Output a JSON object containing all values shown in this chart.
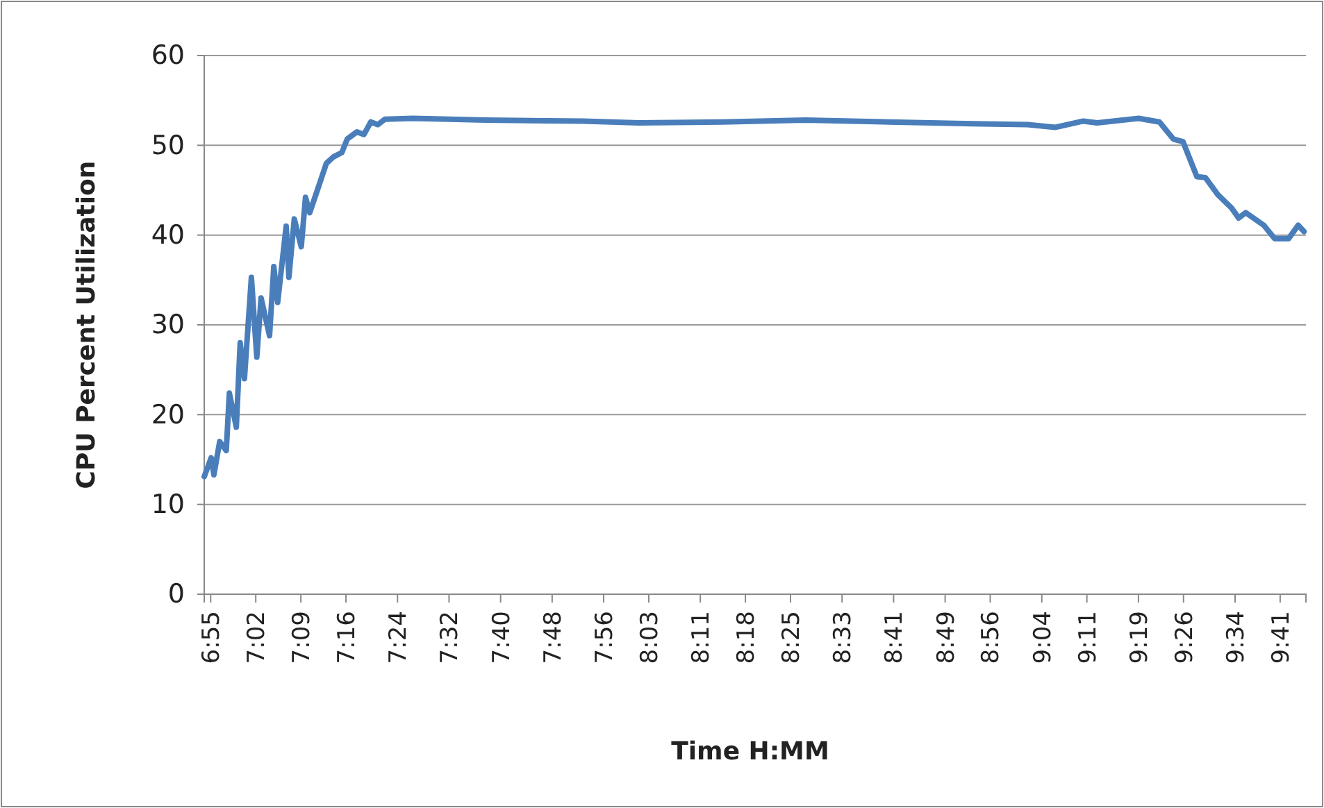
{
  "chart_data": {
    "type": "line",
    "xlabel": "Time H:MM",
    "ylabel": "CPU Percent Utilization",
    "xlim": [
      6.9,
      9.75
    ],
    "ylim": [
      0,
      60
    ],
    "yticks": [
      0,
      10,
      20,
      30,
      40,
      50,
      60
    ],
    "xticks": [
      {
        "value": 6.9167,
        "label": "6:55"
      },
      {
        "value": 7.0333,
        "label": "7:02"
      },
      {
        "value": 7.15,
        "label": "7:09"
      },
      {
        "value": 7.2667,
        "label": "7:16"
      },
      {
        "value": 7.4,
        "label": "7:24"
      },
      {
        "value": 7.5333,
        "label": "7:32"
      },
      {
        "value": 7.6667,
        "label": "7:40"
      },
      {
        "value": 7.8,
        "label": "7:48"
      },
      {
        "value": 7.9333,
        "label": "7:56"
      },
      {
        "value": 8.05,
        "label": "8:03"
      },
      {
        "value": 8.1833,
        "label": "8:11"
      },
      {
        "value": 8.3,
        "label": "8:18"
      },
      {
        "value": 8.4167,
        "label": "8:25"
      },
      {
        "value": 8.55,
        "label": "8:33"
      },
      {
        "value": 8.6833,
        "label": "8:41"
      },
      {
        "value": 8.8167,
        "label": "8:49"
      },
      {
        "value": 8.9333,
        "label": "8:56"
      },
      {
        "value": 9.0667,
        "label": "9:04"
      },
      {
        "value": 9.1833,
        "label": "9:11"
      },
      {
        "value": 9.3167,
        "label": "9:19"
      },
      {
        "value": 9.4333,
        "label": "9:26"
      },
      {
        "value": 9.5667,
        "label": "9:34"
      },
      {
        "value": 9.6833,
        "label": "9:41"
      }
    ],
    "grid": "y",
    "marker": "none",
    "line_style": "solid",
    "series": [
      {
        "color": "#4a7ebb",
        "x": [
          6.9,
          6.918,
          6.925,
          6.94,
          6.957,
          6.965,
          6.983,
          6.993,
          7.004,
          7.022,
          7.036,
          7.047,
          7.069,
          7.08,
          7.09,
          7.112,
          7.119,
          7.133,
          7.151,
          7.162,
          7.173,
          7.195,
          7.216,
          7.234,
          7.256,
          7.27,
          7.295,
          7.313,
          7.331,
          7.349,
          7.367,
          7.439,
          7.629,
          7.881,
          8.024,
          8.24,
          8.455,
          8.671,
          8.886,
          9.03,
          9.102,
          9.174,
          9.21,
          9.317,
          9.371,
          9.407,
          9.432,
          9.468,
          9.49,
          9.522,
          9.558,
          9.576,
          9.594,
          9.641,
          9.669,
          9.705,
          9.73,
          9.745
        ],
        "values": [
          13.1,
          15.2,
          13.3,
          17,
          16,
          22.4,
          18.6,
          28,
          24,
          35.3,
          26.4,
          33,
          28.8,
          36.5,
          32.5,
          41,
          35.3,
          41.8,
          38.7,
          44.2,
          42.5,
          45.3,
          48,
          48.7,
          49.2,
          50.7,
          51.5,
          51.2,
          52.6,
          52.3,
          52.9,
          53,
          52.8,
          52.7,
          52.5,
          52.6,
          52.8,
          52.6,
          52.4,
          52.3,
          52,
          52.7,
          52.5,
          53,
          52.6,
          50.7,
          50.4,
          46.5,
          46.4,
          44.5,
          43,
          41.9,
          42.5,
          41.1,
          39.6,
          39.6,
          41.1,
          40.4
        ]
      }
    ]
  }
}
